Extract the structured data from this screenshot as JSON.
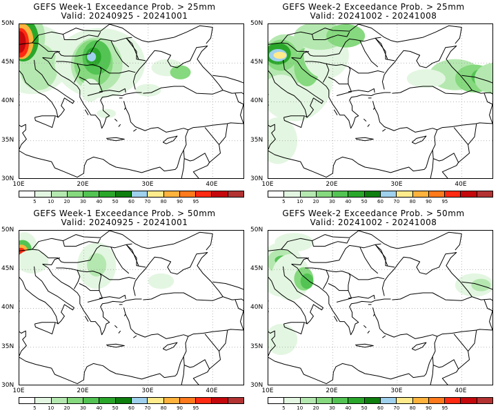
{
  "panels": [
    {
      "line1": "GEFS Week-1 Exceedance Prob. > 25mm",
      "line2": "Valid: 20240925 - 20241001"
    },
    {
      "line1": "GEFS Week-2 Exceedance Prob. > 25mm",
      "line2": "Valid: 20241002 - 20241008"
    },
    {
      "line1": "GEFS Week-1 Exceedance Prob. > 50mm",
      "line2": "Valid: 20240925 - 20241001"
    },
    {
      "line1": "GEFS Week-2 Exceedance Prob. > 50mm",
      "line2": "Valid: 20241002 - 20241008"
    }
  ],
  "lat_labels": [
    "50N",
    "45N",
    "40N",
    "35N",
    "30N"
  ],
  "lon_labels": [
    "10E",
    "20E",
    "30E",
    "40E"
  ],
  "colorbar": {
    "labels": [
      "5",
      "10",
      "20",
      "30",
      "40",
      "50",
      "60",
      "70",
      "80",
      "90",
      "95"
    ],
    "colors": [
      "#ffffff",
      "#e3f6e1",
      "#b5e8b0",
      "#86d97e",
      "#53c453",
      "#2aa72a",
      "#0e7e0e",
      "#9fd0ec",
      "#ffeb8c",
      "#ffb33d",
      "#ff7a1c",
      "#ff2a12",
      "#c4080c",
      "#b33333"
    ]
  },
  "map": {
    "land_outline_color": "#000000",
    "grid_color": "#999999",
    "fill_colors": {
      "p5": "#e3f6e1",
      "p10": "#b5e8b0",
      "p20": "#86d97e",
      "p30": "#53c453",
      "p40": "#2aa72a",
      "p50": "#0e7e0e",
      "p60": "#9fd0ec",
      "p70": "#ffeb8c",
      "p80": "#ffb33d",
      "p90": "#ff2a12",
      "p95": "#c4080c"
    }
  }
}
